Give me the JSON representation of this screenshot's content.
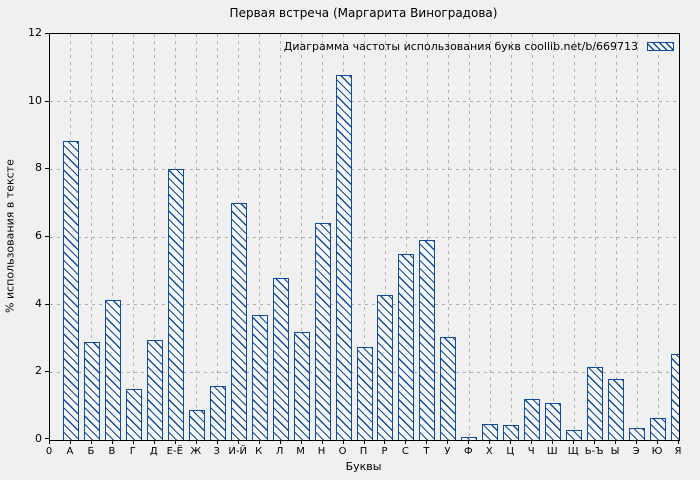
{
  "chart_data": {
    "type": "bar",
    "title": "Первая встреча (Маргарита Виноградова)",
    "legend": "Диаграмма частоты использования букв coollib.net/b/669713",
    "legend_position": "top-right",
    "xlabel": "Буквы",
    "ylabel": "% использования в тексте",
    "ylim": [
      0,
      12
    ],
    "yticks": [
      0,
      2,
      4,
      6,
      8,
      10,
      12
    ],
    "origin_tick_label": "0",
    "grid": true,
    "categories": [
      "А",
      "Б",
      "В",
      "Г",
      "Д",
      "Е-Ё",
      "Ж",
      "З",
      "И-Й",
      "К",
      "Л",
      "М",
      "Н",
      "О",
      "П",
      "Р",
      "С",
      "Т",
      "У",
      "Ф",
      "Х",
      "Ц",
      "Ч",
      "Ш",
      "Щ",
      "Ь-Ъ",
      "Ы",
      "Э",
      "Ю",
      "Я"
    ],
    "values": [
      8.85,
      2.9,
      4.15,
      1.5,
      2.95,
      8.0,
      0.9,
      1.6,
      7.0,
      3.7,
      4.8,
      3.2,
      6.4,
      10.8,
      2.75,
      4.3,
      5.5,
      5.9,
      3.05,
      0.1,
      0.48,
      0.45,
      1.2,
      1.1,
      0.3,
      2.15,
      1.8,
      0.35,
      0.65,
      2.55
    ],
    "colors": {
      "background": "#f0f0f0",
      "bar_fill": "#f8f8f8",
      "bar_hatch": "#0d4da1",
      "bar_border": "#0d4da1",
      "grid": "#b0b0b0",
      "axis": "#000000",
      "text": "#000000"
    }
  }
}
